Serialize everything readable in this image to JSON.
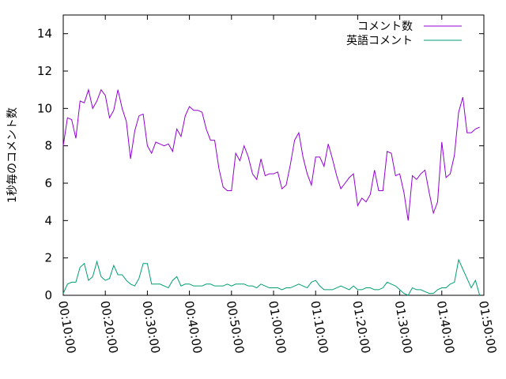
{
  "chart_data": {
    "type": "line",
    "title": "",
    "xlabel": "",
    "ylabel": "1秒毎のコメント数",
    "ylim": [
      0,
      15
    ],
    "xlim": [
      "00:10:00",
      "01:50:00"
    ],
    "x_ticks": [
      "00:10:00",
      "00:20:00",
      "00:30:00",
      "00:40:00",
      "00:50:00",
      "01:00:00",
      "01:10:00",
      "01:20:00",
      "01:30:00",
      "01:40:00",
      "01:50:00"
    ],
    "y_ticks": [
      "0",
      "2",
      "4",
      "6",
      "8",
      "10",
      "12",
      "14"
    ],
    "grid": false,
    "legend_position": "top-right",
    "x_start": "00:10:00",
    "x_step": "00:01:00",
    "series": [
      {
        "name": "コメント数",
        "color": "#9400d3",
        "values": [
          8.0,
          9.5,
          9.4,
          8.4,
          10.4,
          10.3,
          11.0,
          10.0,
          10.4,
          11.0,
          10.7,
          9.5,
          9.9,
          11.0,
          10.0,
          9.3,
          7.3,
          8.8,
          9.6,
          9.7,
          8.0,
          7.6,
          8.2,
          8.1,
          8.0,
          8.1,
          7.7,
          8.9,
          8.5,
          9.6,
          10.1,
          9.9,
          9.9,
          9.8,
          8.9,
          8.3,
          8.3,
          6.8,
          5.8,
          5.6,
          5.6,
          7.6,
          7.2,
          8.0,
          7.4,
          6.5,
          6.2,
          7.3,
          6.4,
          6.5,
          6.5,
          6.6,
          5.7,
          5.9,
          7.0,
          8.3,
          8.7,
          7.4,
          6.5,
          5.9,
          7.4,
          7.4,
          6.9,
          8.1,
          7.3,
          6.4,
          5.7,
          6.0,
          6.3,
          6.5,
          4.8,
          5.2,
          5.0,
          5.4,
          6.7,
          5.6,
          5.6,
          7.7,
          7.6,
          6.4,
          6.5,
          5.5,
          4.0,
          6.4,
          6.2,
          6.5,
          6.7,
          5.5,
          4.4,
          5.0,
          8.2,
          6.3,
          6.5,
          7.5,
          9.8,
          10.6,
          8.7,
          8.7,
          8.9,
          9.0
        ]
      },
      {
        "name": "英語コメント",
        "color": "#009e73",
        "values": [
          0.1,
          0.6,
          0.7,
          0.7,
          1.5,
          1.7,
          0.8,
          1.0,
          1.8,
          1.0,
          0.8,
          0.9,
          1.6,
          1.1,
          1.1,
          0.8,
          0.6,
          0.5,
          0.9,
          1.7,
          1.7,
          0.6,
          0.6,
          0.6,
          0.5,
          0.4,
          0.8,
          1.0,
          0.5,
          0.6,
          0.6,
          0.5,
          0.5,
          0.5,
          0.6,
          0.6,
          0.5,
          0.5,
          0.5,
          0.6,
          0.5,
          0.6,
          0.6,
          0.6,
          0.5,
          0.5,
          0.4,
          0.6,
          0.5,
          0.4,
          0.4,
          0.4,
          0.3,
          0.4,
          0.4,
          0.5,
          0.6,
          0.5,
          0.4,
          0.7,
          0.8,
          0.5,
          0.3,
          0.3,
          0.3,
          0.4,
          0.5,
          0.4,
          0.3,
          0.5,
          0.3,
          0.3,
          0.4,
          0.4,
          0.3,
          0.3,
          0.4,
          0.7,
          0.6,
          0.5,
          0.3,
          0.1,
          0.0,
          0.4,
          0.3,
          0.3,
          0.2,
          0.1,
          0.1,
          0.3,
          0.4,
          0.4,
          0.6,
          0.7,
          1.9,
          1.4,
          0.9,
          0.4,
          0.8,
          0.0
        ]
      }
    ]
  }
}
